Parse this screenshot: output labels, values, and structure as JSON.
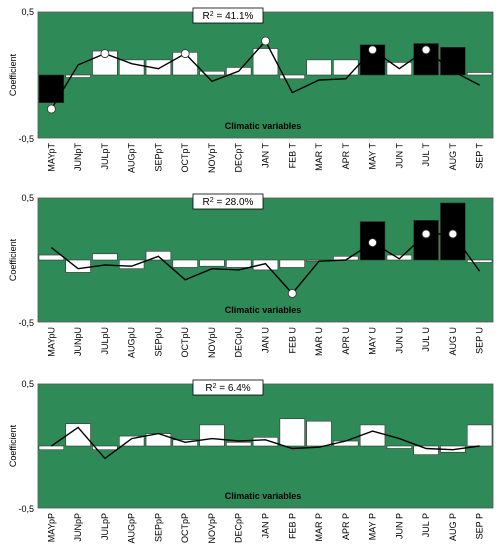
{
  "colors": {
    "plot_bg": "#2e8b57",
    "bar_negative_sig": "#000000",
    "bar_positive": "#ffffff",
    "line": "#000000",
    "marker": "#ffffff"
  },
  "chart_data": [
    {
      "type": "bar",
      "r2_label": "R",
      "r2_sup": "2",
      "r2_value": " = 41.1%",
      "ylabel": "Coefficient",
      "xlabel": "Climatic variables",
      "ylim": [
        -0.5,
        0.5
      ],
      "yticks": [
        "0,5",
        "-0,5"
      ],
      "categories": [
        "MAYpT",
        "JUNpT",
        "JULpT",
        "AUGpT",
        "SEPpT",
        "OCTpT",
        "NOVpT",
        "DECpT",
        "JAN T",
        "FEB T",
        "MAR T",
        "APR T",
        "MAY T",
        "JUN T",
        "JUL T",
        "AUG T",
        "SEP T"
      ],
      "values": [
        -0.22,
        -0.02,
        0.19,
        0.12,
        0.12,
        0.18,
        0.03,
        0.06,
        0.21,
        -0.03,
        0.12,
        0.12,
        0.24,
        0.1,
        0.25,
        0.22,
        0.02
      ],
      "bar_fill": [
        "black",
        "white",
        "white",
        "white",
        "white",
        "white",
        "white",
        "white",
        "white",
        "white",
        "white",
        "white",
        "black",
        "white",
        "black",
        "black",
        "white"
      ],
      "line_values": [
        -0.27,
        0.08,
        0.17,
        0.09,
        0.05,
        0.17,
        -0.05,
        0.03,
        0.27,
        -0.14,
        -0.04,
        -0.03,
        0.2,
        0.05,
        0.2,
        0.03,
        -0.08
      ],
      "markers": [
        0,
        2,
        5,
        8,
        12,
        14
      ]
    },
    {
      "type": "bar",
      "r2_label": "R",
      "r2_sup": "2",
      "r2_value": " = 28.0%",
      "ylabel": "Coefficient",
      "xlabel": "Climatic variables",
      "ylim": [
        -0.5,
        0.5
      ],
      "yticks": [
        "0,5",
        "-0,5"
      ],
      "categories": [
        "MAYpU",
        "JUNpU",
        "JULpU",
        "AUGpU",
        "SEPpU",
        "OCTpU",
        "NOVpU",
        "DECpU",
        "JAN U",
        "FEB U",
        "MAR U",
        "APR U",
        "MAY U",
        "JUN U",
        "JUL U",
        "AUG U",
        "SEP U"
      ],
      "values": [
        0.04,
        -0.1,
        0.05,
        -0.07,
        0.07,
        -0.06,
        -0.05,
        -0.06,
        -0.08,
        -0.06,
        0.0,
        0.03,
        0.31,
        0.04,
        0.32,
        0.46,
        -0.02
      ],
      "bar_fill": [
        "white",
        "white",
        "white",
        "white",
        "white",
        "white",
        "white",
        "white",
        "white",
        "white",
        "white",
        "white",
        "black",
        "white",
        "black",
        "black",
        "white"
      ],
      "line_values": [
        0.1,
        -0.07,
        -0.04,
        -0.05,
        0.03,
        -0.16,
        -0.07,
        -0.08,
        -0.03,
        -0.27,
        -0.01,
        0.0,
        0.14,
        0.01,
        0.21,
        0.21,
        -0.09
      ],
      "markers": [
        9,
        12,
        14,
        15
      ]
    },
    {
      "type": "bar",
      "r2_label": "R",
      "r2_sup": "2",
      "r2_value": " = 6.4%",
      "ylabel": "Coefficient",
      "xlabel": "Climatic variables",
      "ylim": [
        -0.5,
        0.5
      ],
      "yticks": [
        "0,5",
        "-0,5"
      ],
      "categories": [
        "MAYpP",
        "JUNpP",
        "JULpP",
        "AUGpP",
        "SEPpP",
        "OCTpP",
        "NOVpP",
        "DECpP",
        "JAN P",
        "FEB P",
        "MAR P",
        "APR P",
        "MAY P",
        "JUN P",
        "JUL P",
        "AUG P",
        "SEP P"
      ],
      "values": [
        -0.03,
        0.18,
        -0.03,
        0.08,
        0.1,
        0.05,
        0.17,
        0.03,
        0.07,
        0.22,
        0.2,
        0.04,
        0.17,
        -0.02,
        -0.07,
        -0.05,
        0.17
      ],
      "bar_fill": [
        "white",
        "white",
        "white",
        "white",
        "white",
        "white",
        "white",
        "white",
        "white",
        "white",
        "white",
        "white",
        "white",
        "white",
        "white",
        "white",
        "white"
      ],
      "line_values": [
        0.0,
        0.15,
        -0.1,
        0.06,
        0.1,
        0.03,
        0.06,
        0.04,
        0.05,
        -0.02,
        -0.01,
        0.04,
        0.12,
        0.06,
        -0.02,
        -0.03,
        0.0
      ],
      "markers": []
    }
  ]
}
